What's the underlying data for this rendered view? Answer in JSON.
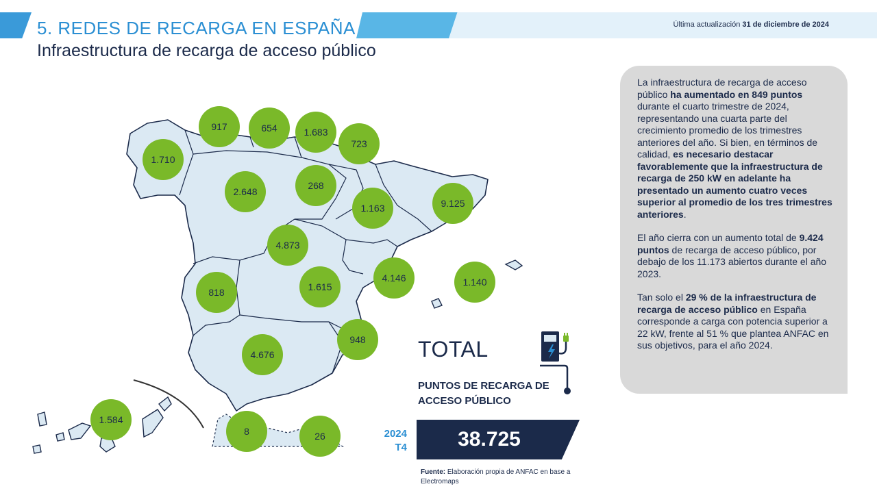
{
  "header": {
    "section_title": "5. REDES DE RECARGA EN ESPAÑA",
    "subtitle": "Infraestructura de recarga de acceso público",
    "update_prefix": "Última actualización",
    "update_date": "31 de diciembre de 2024"
  },
  "map": {
    "fill_color": "#dbe9f3",
    "bubble_color": "#7ab929",
    "regions": [
      {
        "name": "Galicia",
        "value": "1.710"
      },
      {
        "name": "Asturias",
        "value": "917"
      },
      {
        "name": "Cantabria",
        "value": "654"
      },
      {
        "name": "País Vasco",
        "value": "1.683"
      },
      {
        "name": "Navarra",
        "value": "723"
      },
      {
        "name": "Castilla y León",
        "value": "2.648"
      },
      {
        "name": "La Rioja",
        "value": "268"
      },
      {
        "name": "Aragón",
        "value": "1.163"
      },
      {
        "name": "Cataluña",
        "value": "9.125"
      },
      {
        "name": "Madrid",
        "value": "4.873"
      },
      {
        "name": "Extremadura",
        "value": "818"
      },
      {
        "name": "Castilla-La Mancha",
        "value": "1.615"
      },
      {
        "name": "Comunidad Valenciana",
        "value": "4.146"
      },
      {
        "name": "Baleares",
        "value": "1.140"
      },
      {
        "name": "Murcia",
        "value": "948"
      },
      {
        "name": "Andalucía",
        "value": "4.676"
      },
      {
        "name": "Canarias",
        "value": "1.584"
      },
      {
        "name": "Ceuta",
        "value": "8"
      },
      {
        "name": "Melilla",
        "value": "26"
      }
    ]
  },
  "total": {
    "label": "TOTAL",
    "sub_label": "PUNTOS DE RECARGA DE ACCESO PÚBLICO",
    "period_year": "2024",
    "period_quarter": "T4",
    "value": "38.725",
    "icon": "charging-station-icon"
  },
  "source": {
    "label": "Fuente:",
    "text": "Elaboración propia de ANFAC en base a Electromaps"
  },
  "info": {
    "p1_a": "La infraestructura de recarga de acceso público ",
    "p1_b": "ha aumentado en 849 puntos",
    "p1_c": " durante el cuarto trimestre de 2024, representando una cuarta parte del crecimiento promedio de los trimestres anteriores del año. Si bien, en términos de calidad, ",
    "p1_d": "es necesario destacar favorablemente que la infraestructura de recarga de 250 kW en adelante ha presentado un aumento cuatro veces superior al promedio de los tres trimestres anteriores",
    "p1_e": ".",
    "p2_a": "El año cierra con un aumento total de ",
    "p2_b": "9.424 puntos",
    "p2_c": " de recarga de acceso público, por debajo de los 11.173 abiertos durante el año 2023.",
    "p3_a": "Tan solo el ",
    "p3_b": "29 % de la infraestructura de recarga de acceso público",
    "p3_c": " en España corresponde a carga con potencia superior a 22 kW, frente al 51 % que plantea ANFAC en sus objetivos, para el año 2024."
  }
}
